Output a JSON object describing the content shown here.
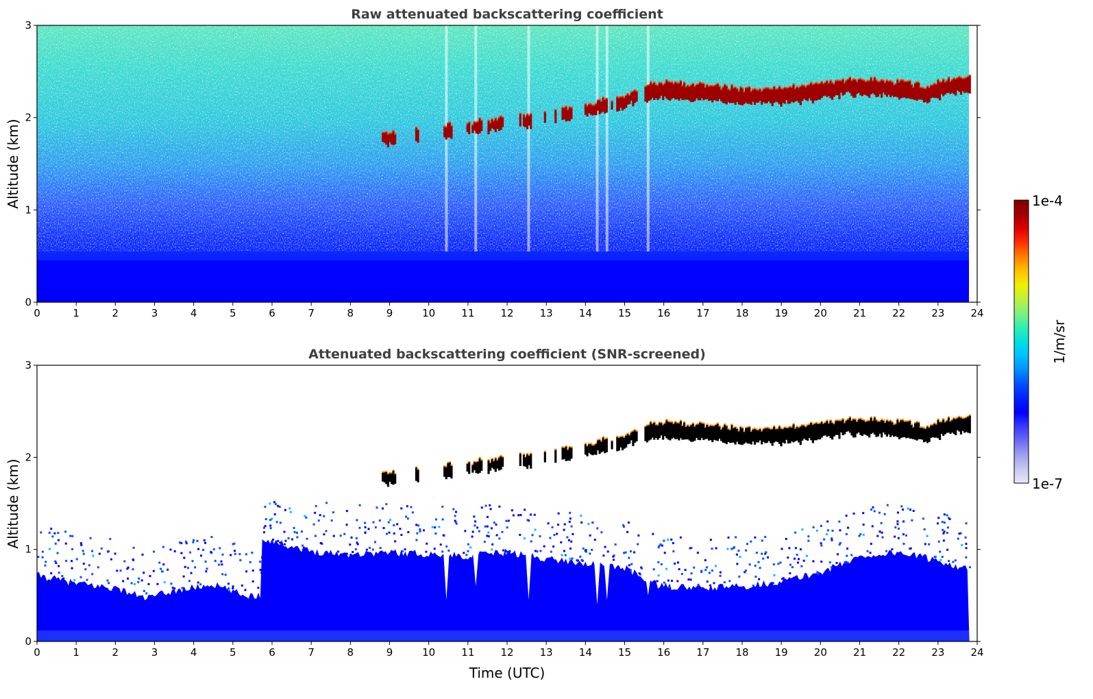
{
  "chart_data": [
    {
      "type": "heatmap",
      "title": "Raw attenuated backscattering coefficient",
      "xlabel": "",
      "ylabel": "Altitude (km)",
      "xlim": [
        0,
        24
      ],
      "ylim": [
        0,
        3
      ],
      "x_ticks": [
        "0",
        "1",
        "2",
        "3",
        "4",
        "5",
        "6",
        "7",
        "8",
        "9",
        "10",
        "11",
        "12",
        "13",
        "14",
        "15",
        "16",
        "17",
        "18",
        "19",
        "20",
        "21",
        "22",
        "23",
        "24"
      ],
      "y_ticks": [
        "0",
        "1",
        "2",
        "3"
      ],
      "data_end_time": 23.8,
      "colorscale": "log",
      "value_range": [
        1e-07,
        0.0001
      ],
      "cloud_layer": [
        {
          "time": 8.8,
          "altitude": 1.77
        },
        {
          "time": 9.0,
          "altitude": 1.76
        },
        {
          "time": 10.45,
          "altitude": 1.84
        },
        {
          "time": 11.2,
          "altitude": 1.9
        },
        {
          "time": 11.7,
          "altitude": 1.92
        },
        {
          "time": 12.5,
          "altitude": 1.97
        },
        {
          "time": 13.5,
          "altitude": 2.04
        },
        {
          "time": 14.1,
          "altitude": 2.08
        },
        {
          "time": 14.4,
          "altitude": 2.13
        },
        {
          "time": 14.9,
          "altitude": 2.15
        },
        {
          "time": 15.2,
          "altitude": 2.22
        },
        {
          "time": 15.6,
          "altitude": 2.27
        },
        {
          "time": 16.0,
          "altitude": 2.29
        },
        {
          "time": 17.0,
          "altitude": 2.27
        },
        {
          "time": 18.0,
          "altitude": 2.22
        },
        {
          "time": 19.0,
          "altitude": 2.23
        },
        {
          "time": 20.0,
          "altitude": 2.28
        },
        {
          "time": 20.7,
          "altitude": 2.33
        },
        {
          "time": 21.5,
          "altitude": 2.32
        },
        {
          "time": 22.3,
          "altitude": 2.28
        },
        {
          "time": 22.7,
          "altitude": 2.25
        },
        {
          "time": 23.3,
          "altitude": 2.34
        },
        {
          "time": 23.8,
          "altitude": 2.36
        }
      ]
    },
    {
      "type": "heatmap",
      "title": "Attenuated backscattering coefficient (SNR-screened)",
      "xlabel": "Time (UTC)",
      "ylabel": "Altitude (km)",
      "xlim": [
        0,
        24
      ],
      "ylim": [
        0,
        3
      ],
      "x_ticks": [
        "0",
        "1",
        "2",
        "3",
        "4",
        "5",
        "6",
        "7",
        "8",
        "9",
        "10",
        "11",
        "12",
        "13",
        "14",
        "15",
        "16",
        "17",
        "18",
        "19",
        "20",
        "21",
        "22",
        "23",
        "24"
      ],
      "y_ticks": [
        "0",
        "1",
        "2",
        "3"
      ],
      "data_end_time": 23.8,
      "colorscale": "log",
      "value_range": [
        1e-07,
        0.0001
      ],
      "boundary_layer_top": [
        {
          "time": 0.0,
          "altitude": 0.72
        },
        {
          "time": 1.0,
          "altitude": 0.63
        },
        {
          "time": 2.0,
          "altitude": 0.58
        },
        {
          "time": 2.8,
          "altitude": 0.47
        },
        {
          "time": 3.5,
          "altitude": 0.55
        },
        {
          "time": 4.5,
          "altitude": 0.62
        },
        {
          "time": 5.3,
          "altitude": 0.5
        },
        {
          "time": 5.7,
          "altitude": 0.5
        },
        {
          "time": 5.75,
          "altitude": 1.12
        },
        {
          "time": 7.0,
          "altitude": 0.98
        },
        {
          "time": 8.0,
          "altitude": 0.95
        },
        {
          "time": 9.0,
          "altitude": 0.97
        },
        {
          "time": 10.0,
          "altitude": 0.95
        },
        {
          "time": 11.0,
          "altitude": 0.93
        },
        {
          "time": 12.0,
          "altitude": 0.97
        },
        {
          "time": 13.0,
          "altitude": 0.9
        },
        {
          "time": 14.0,
          "altitude": 0.85
        },
        {
          "time": 15.0,
          "altitude": 0.8
        },
        {
          "time": 15.9,
          "altitude": 0.6
        },
        {
          "time": 17.0,
          "altitude": 0.58
        },
        {
          "time": 18.0,
          "altitude": 0.6
        },
        {
          "time": 19.0,
          "altitude": 0.65
        },
        {
          "time": 20.0,
          "altitude": 0.75
        },
        {
          "time": 21.0,
          "altitude": 0.92
        },
        {
          "time": 22.0,
          "altitude": 0.97
        },
        {
          "time": 23.0,
          "altitude": 0.88
        },
        {
          "time": 23.8,
          "altitude": 0.78
        }
      ],
      "cloud_layer": [
        {
          "time": 8.8,
          "altitude": 1.77
        },
        {
          "time": 9.0,
          "altitude": 1.76
        },
        {
          "time": 10.45,
          "altitude": 1.84
        },
        {
          "time": 11.2,
          "altitude": 1.9
        },
        {
          "time": 11.7,
          "altitude": 1.92
        },
        {
          "time": 12.5,
          "altitude": 1.97
        },
        {
          "time": 13.5,
          "altitude": 2.04
        },
        {
          "time": 14.1,
          "altitude": 2.08
        },
        {
          "time": 14.4,
          "altitude": 2.13
        },
        {
          "time": 14.9,
          "altitude": 2.15
        },
        {
          "time": 15.2,
          "altitude": 2.22
        },
        {
          "time": 15.6,
          "altitude": 2.27
        },
        {
          "time": 16.0,
          "altitude": 2.29
        },
        {
          "time": 17.0,
          "altitude": 2.27
        },
        {
          "time": 18.0,
          "altitude": 2.22
        },
        {
          "time": 19.0,
          "altitude": 2.23
        },
        {
          "time": 20.0,
          "altitude": 2.28
        },
        {
          "time": 20.7,
          "altitude": 2.33
        },
        {
          "time": 21.5,
          "altitude": 2.32
        },
        {
          "time": 22.3,
          "altitude": 2.28
        },
        {
          "time": 22.7,
          "altitude": 2.25
        },
        {
          "time": 23.3,
          "altitude": 2.34
        },
        {
          "time": 23.8,
          "altitude": 2.36
        }
      ]
    }
  ],
  "colorbar": {
    "max_label": "1e-4",
    "min_label": "1e-7",
    "label": "1/m/sr",
    "colors": [
      "#e8e8f8",
      "#c8c8f0",
      "#9f9ff0",
      "#6b6bf5",
      "#3a3aff",
      "#0000ff",
      "#0020ff",
      "#0050ff",
      "#0090ff",
      "#00c0ff",
      "#00e0e0",
      "#30f0b0",
      "#80f080",
      "#c0f040",
      "#f0f000",
      "#ffc000",
      "#ff8000",
      "#ff3000",
      "#e00000",
      "#a00000",
      "#800000"
    ]
  }
}
